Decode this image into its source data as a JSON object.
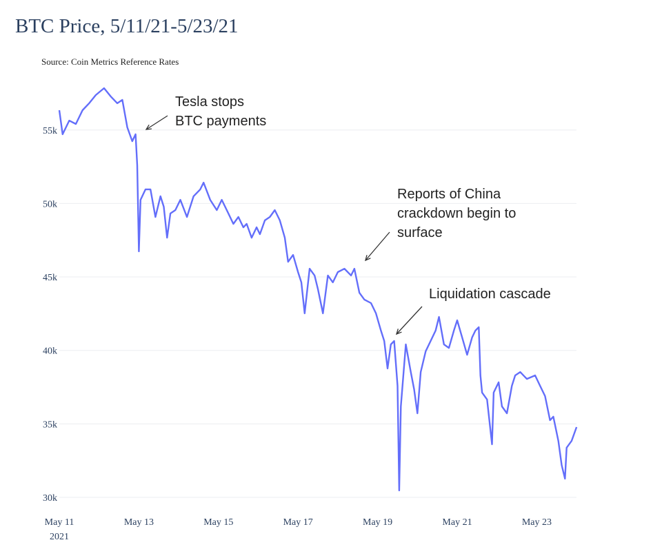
{
  "chart_data": {
    "type": "line",
    "title": "BTC Price, 5/11/21-5/23/21",
    "subtitle": "Source: Coin Metrics Reference Rates",
    "xlabel": "",
    "ylabel": "",
    "ylim": [
      30000,
      57900
    ],
    "xlim": [
      "2021-05-11T00:00",
      "2021-05-24T00:00"
    ],
    "y_ticks": [
      {
        "value": 30000,
        "label": "30k"
      },
      {
        "value": 35000,
        "label": "35k"
      },
      {
        "value": 40000,
        "label": "40k"
      },
      {
        "value": 45000,
        "label": "45k"
      },
      {
        "value": 50000,
        "label": "50k"
      },
      {
        "value": 55000,
        "label": "55k"
      }
    ],
    "x_ticks": [
      {
        "value": "2021-05-11T00:00",
        "label": "May 11",
        "sublabel": "2021"
      },
      {
        "value": "2021-05-13T00:00",
        "label": "May 13"
      },
      {
        "value": "2021-05-15T00:00",
        "label": "May 15"
      },
      {
        "value": "2021-05-17T00:00",
        "label": "May 17"
      },
      {
        "value": "2021-05-19T00:00",
        "label": "May 19"
      },
      {
        "value": "2021-05-21T00:00",
        "label": "May 21"
      },
      {
        "value": "2021-05-23T00:00",
        "label": "May 23"
      }
    ],
    "grid": true,
    "line_color": "#636efa",
    "series": [
      {
        "points": [
          [
            "2021-05-11T00:00",
            56350
          ],
          [
            "2021-05-11T02:00",
            54710
          ],
          [
            "2021-05-11T06:00",
            55640
          ],
          [
            "2021-05-11T10:00",
            55410
          ],
          [
            "2021-05-11T14:00",
            56350
          ],
          [
            "2021-05-11T18:00",
            56820
          ],
          [
            "2021-05-11T22:00",
            57380
          ],
          [
            "2021-05-12T03:00",
            57850
          ],
          [
            "2021-05-12T07:00",
            57290
          ],
          [
            "2021-05-12T11:00",
            56820
          ],
          [
            "2021-05-12T14:00",
            57050
          ],
          [
            "2021-05-12T17:00",
            55180
          ],
          [
            "2021-05-12T20:00",
            54240
          ],
          [
            "2021-05-12T22:00",
            54710
          ],
          [
            "2021-05-12T23:00",
            52600
          ],
          [
            "2021-05-13T00:00",
            46740
          ],
          [
            "2021-05-13T01:00",
            50250
          ],
          [
            "2021-05-13T04:00",
            50960
          ],
          [
            "2021-05-13T07:00",
            50960
          ],
          [
            "2021-05-13T10:00",
            49080
          ],
          [
            "2021-05-13T13:00",
            50490
          ],
          [
            "2021-05-13T15:00",
            49780
          ],
          [
            "2021-05-13T17:00",
            47670
          ],
          [
            "2021-05-13T19:00",
            49320
          ],
          [
            "2021-05-13T22:00",
            49550
          ],
          [
            "2021-05-14T01:00",
            50250
          ],
          [
            "2021-05-14T05:00",
            49080
          ],
          [
            "2021-05-14T09:00",
            50490
          ],
          [
            "2021-05-14T13:00",
            50960
          ],
          [
            "2021-05-14T15:00",
            51420
          ],
          [
            "2021-05-14T19:00",
            50250
          ],
          [
            "2021-05-14T23:00",
            49550
          ],
          [
            "2021-05-15T02:00",
            50250
          ],
          [
            "2021-05-15T06:00",
            49320
          ],
          [
            "2021-05-15T09:00",
            48610
          ],
          [
            "2021-05-15T12:00",
            49080
          ],
          [
            "2021-05-15T15:00",
            48380
          ],
          [
            "2021-05-15T17:00",
            48610
          ],
          [
            "2021-05-15T20:00",
            47670
          ],
          [
            "2021-05-15T23:00",
            48380
          ],
          [
            "2021-05-16T01:00",
            47910
          ],
          [
            "2021-05-16T04:00",
            48850
          ],
          [
            "2021-05-16T07:00",
            49080
          ],
          [
            "2021-05-16T10:00",
            49550
          ],
          [
            "2021-05-16T13:00",
            48850
          ],
          [
            "2021-05-16T16:00",
            47670
          ],
          [
            "2021-05-16T18:00",
            46030
          ],
          [
            "2021-05-16T21:00",
            46500
          ],
          [
            "2021-05-17T00:00",
            45330
          ],
          [
            "2021-05-17T02:00",
            44630
          ],
          [
            "2021-05-17T04:00",
            42520
          ],
          [
            "2021-05-17T07:00",
            45560
          ],
          [
            "2021-05-17T10:00",
            45100
          ],
          [
            "2021-05-17T12:00",
            44160
          ],
          [
            "2021-05-17T15:00",
            42520
          ],
          [
            "2021-05-17T18:00",
            45100
          ],
          [
            "2021-05-17T21:00",
            44630
          ],
          [
            "2021-05-18T00:00",
            45330
          ],
          [
            "2021-05-18T04:00",
            45560
          ],
          [
            "2021-05-18T08:00",
            45100
          ],
          [
            "2021-05-18T10:00",
            45560
          ],
          [
            "2021-05-18T13:00",
            43920
          ],
          [
            "2021-05-18T16:00",
            43460
          ],
          [
            "2021-05-18T20:00",
            43220
          ],
          [
            "2021-05-18T23:00",
            42520
          ],
          [
            "2021-05-19T02:00",
            41350
          ],
          [
            "2021-05-19T04:00",
            40640
          ],
          [
            "2021-05-19T06:00",
            38770
          ],
          [
            "2021-05-19T08:00",
            40410
          ],
          [
            "2021-05-19T10:00",
            40640
          ],
          [
            "2021-05-19T12:00",
            37590
          ],
          [
            "2021-05-19T13:00",
            30470
          ],
          [
            "2021-05-19T14:00",
            36190
          ],
          [
            "2021-05-19T17:00",
            40410
          ],
          [
            "2021-05-19T20:00",
            38530
          ],
          [
            "2021-05-19T22:00",
            37360
          ],
          [
            "2021-05-20T00:00",
            35720
          ],
          [
            "2021-05-20T02:00",
            38530
          ],
          [
            "2021-05-20T05:00",
            39940
          ],
          [
            "2021-05-20T08:00",
            40640
          ],
          [
            "2021-05-20T11:00",
            41350
          ],
          [
            "2021-05-20T13:00",
            42280
          ],
          [
            "2021-05-20T16:00",
            40410
          ],
          [
            "2021-05-20T19:00",
            40170
          ],
          [
            "2021-05-20T22:00",
            41350
          ],
          [
            "2021-05-21T00:00",
            42050
          ],
          [
            "2021-05-21T03:00",
            40880
          ],
          [
            "2021-05-21T06:00",
            39700
          ],
          [
            "2021-05-21T09:00",
            40880
          ],
          [
            "2021-05-21T11:00",
            41350
          ],
          [
            "2021-05-21T13:00",
            41580
          ],
          [
            "2021-05-21T14:00",
            38300
          ],
          [
            "2021-05-21T15:00",
            37130
          ],
          [
            "2021-05-21T18:00",
            36660
          ],
          [
            "2021-05-21T21:00",
            33610
          ],
          [
            "2021-05-21T22:00",
            37130
          ],
          [
            "2021-05-22T01:00",
            37830
          ],
          [
            "2021-05-22T03:00",
            36190
          ],
          [
            "2021-05-22T06:00",
            35720
          ],
          [
            "2021-05-22T09:00",
            37590
          ],
          [
            "2021-05-22T11:00",
            38300
          ],
          [
            "2021-05-22T14:00",
            38530
          ],
          [
            "2021-05-22T18:00",
            38060
          ],
          [
            "2021-05-22T23:00",
            38300
          ],
          [
            "2021-05-23T02:00",
            37590
          ],
          [
            "2021-05-23T05:00",
            36890
          ],
          [
            "2021-05-23T08:00",
            35250
          ],
          [
            "2021-05-23T10:00",
            35490
          ],
          [
            "2021-05-23T13:00",
            33840
          ],
          [
            "2021-05-23T15:00",
            32200
          ],
          [
            "2021-05-23T17:00",
            31270
          ],
          [
            "2021-05-23T18:00",
            33380
          ],
          [
            "2021-05-23T21:00",
            33840
          ],
          [
            "2021-05-24T00:00",
            34780
          ]
        ]
      }
    ],
    "annotations": [
      {
        "text_lines": [
          "Tesla stops",
          "BTC payments"
        ],
        "x": "2021-05-12T22:00",
        "y": 54900
      },
      {
        "text_lines": [
          "Reports of China",
          "crackdown begin to",
          "surface"
        ],
        "x": "2021-05-18T12:00",
        "y": 45700
      },
      {
        "text_lines": [
          "Liquidation cascade"
        ],
        "x": "2021-05-19T04:00",
        "y": 40300
      }
    ]
  }
}
